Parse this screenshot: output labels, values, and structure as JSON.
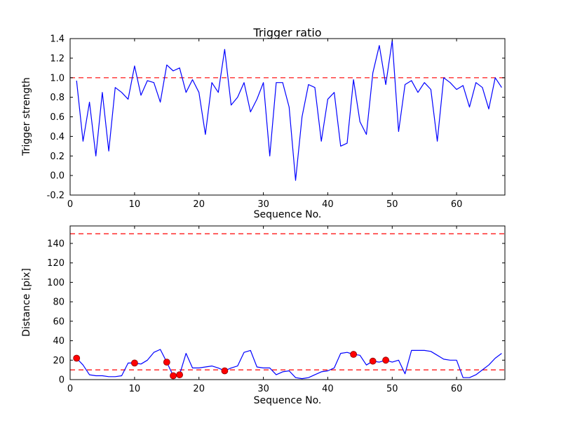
{
  "figure": {
    "background": "#ffffff",
    "frame_color": "#000000"
  },
  "chart_data": [
    {
      "id": "top",
      "type": "line",
      "title": "Trigger ratio",
      "xlabel": "Sequence No.",
      "ylabel": "Trigger strength",
      "xlim": [
        0,
        67.5
      ],
      "ylim": [
        -0.2,
        1.4
      ],
      "xticks": [
        0,
        10,
        20,
        30,
        40,
        50,
        60
      ],
      "xtick_labels": [
        "0",
        "10",
        "20",
        "30",
        "40",
        "50",
        "60"
      ],
      "yticks": [
        -0.2,
        0.0,
        0.2,
        0.4,
        0.6,
        0.8,
        1.0,
        1.2,
        1.4
      ],
      "ytick_labels": [
        "-0.2",
        "0.0",
        "0.2",
        "0.4",
        "0.6",
        "0.8",
        "1.0",
        "1.2",
        "1.4"
      ],
      "grid": false,
      "legend": false,
      "line_color": "#0000ff",
      "threshold_color": "#ff0000",
      "thresholds": [
        1.0
      ],
      "x": [
        1,
        2,
        3,
        4,
        5,
        6,
        7,
        8,
        9,
        10,
        11,
        12,
        13,
        14,
        15,
        16,
        17,
        18,
        19,
        20,
        21,
        22,
        23,
        24,
        25,
        26,
        27,
        28,
        29,
        30,
        31,
        32,
        33,
        34,
        35,
        36,
        37,
        38,
        39,
        40,
        41,
        42,
        43,
        44,
        45,
        46,
        47,
        48,
        49,
        50,
        51,
        52,
        53,
        54,
        55,
        56,
        57,
        58,
        59,
        60,
        61,
        62,
        63,
        64,
        65,
        66,
        67
      ],
      "y": [
        0.97,
        0.35,
        0.75,
        0.2,
        0.85,
        0.25,
        0.9,
        0.85,
        0.78,
        1.12,
        0.82,
        0.97,
        0.95,
        0.75,
        1.13,
        1.07,
        1.1,
        0.85,
        0.98,
        0.85,
        0.42,
        0.95,
        0.85,
        1.29,
        0.72,
        0.8,
        0.95,
        0.65,
        0.78,
        0.95,
        0.2,
        0.95,
        0.95,
        0.7,
        -0.05,
        0.6,
        0.93,
        0.9,
        0.35,
        0.78,
        0.85,
        0.3,
        0.33,
        0.98,
        0.55,
        0.42,
        1.05,
        1.33,
        0.93,
        1.38,
        0.45,
        0.93,
        0.97,
        0.85,
        0.95,
        0.88,
        0.35,
        1.0,
        0.95,
        0.88,
        0.92,
        0.7,
        0.95,
        0.9,
        0.68,
        1.0,
        0.9
      ]
    },
    {
      "id": "bottom",
      "type": "line",
      "title": "",
      "xlabel": "Sequence No.",
      "ylabel": "Distance [pix]",
      "xlim": [
        0,
        67.5
      ],
      "ylim": [
        0,
        158
      ],
      "xticks": [
        0,
        10,
        20,
        30,
        40,
        50,
        60
      ],
      "xtick_labels": [
        "0",
        "10",
        "20",
        "30",
        "40",
        "50",
        "60"
      ],
      "yticks": [
        0,
        20,
        40,
        60,
        80,
        100,
        120,
        140
      ],
      "ytick_labels": [
        "0",
        "20",
        "40",
        "60",
        "80",
        "100",
        "120",
        "140"
      ],
      "grid": false,
      "legend": false,
      "line_color": "#0000ff",
      "threshold_color": "#ff0000",
      "thresholds": [
        10,
        150
      ],
      "x": [
        1,
        2,
        3,
        4,
        5,
        6,
        7,
        8,
        9,
        10,
        11,
        12,
        13,
        14,
        15,
        16,
        17,
        18,
        19,
        20,
        21,
        22,
        23,
        24,
        25,
        26,
        27,
        28,
        29,
        30,
        31,
        32,
        33,
        34,
        35,
        36,
        37,
        38,
        39,
        40,
        41,
        42,
        43,
        44,
        45,
        46,
        47,
        48,
        49,
        50,
        51,
        52,
        53,
        54,
        55,
        56,
        57,
        58,
        59,
        60,
        61,
        62,
        63,
        64,
        65,
        66,
        67
      ],
      "y": [
        22,
        15,
        5,
        4,
        4,
        3,
        3,
        4,
        17,
        17,
        16,
        20,
        28,
        31,
        18,
        4,
        5,
        27,
        12,
        12,
        13,
        14,
        12,
        9,
        12,
        14,
        28,
        30,
        13,
        12,
        12,
        5,
        8,
        9,
        2,
        1,
        2,
        5,
        8,
        9,
        12,
        27,
        28,
        26,
        25,
        15,
        19,
        18,
        20,
        18,
        20,
        6,
        30,
        30,
        30,
        29,
        25,
        21,
        20,
        20,
        2,
        2,
        5,
        10,
        15,
        22,
        27
      ],
      "scatter": {
        "marker": "o",
        "color": "#ff0000",
        "points": [
          [
            1,
            22
          ],
          [
            10,
            17
          ],
          [
            15,
            18
          ],
          [
            16,
            4
          ],
          [
            17,
            5
          ],
          [
            24,
            9
          ],
          [
            44,
            26
          ],
          [
            47,
            19
          ],
          [
            49,
            20
          ]
        ]
      }
    }
  ]
}
